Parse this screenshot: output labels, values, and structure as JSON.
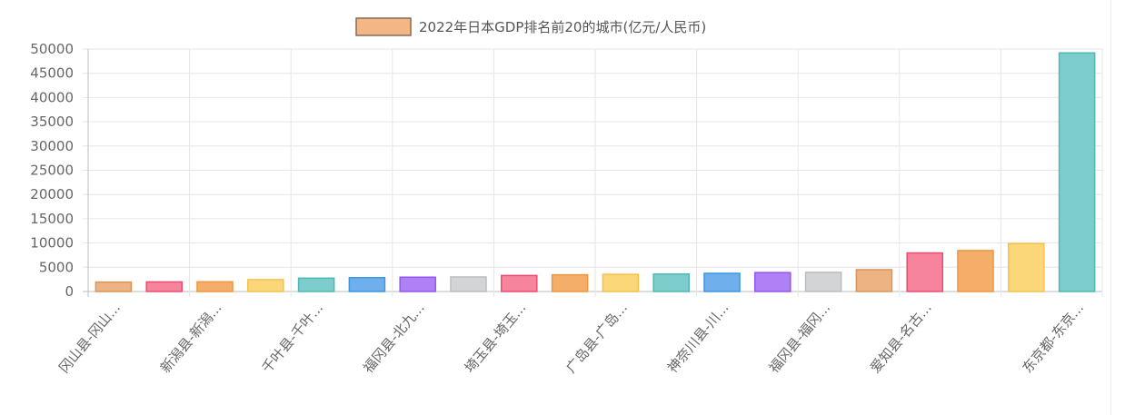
{
  "chart_data": {
    "type": "bar",
    "title": "",
    "legend": {
      "label": "2022年日本GDP排名前20的城市(亿元/人民币)",
      "position": "top",
      "swatch_fill": "#F2B784",
      "swatch_stroke": "#8A6A55"
    },
    "xlabel": "",
    "ylabel": "",
    "ylim": [
      0,
      50000
    ],
    "y_ticks": [
      0,
      5000,
      10000,
      15000,
      20000,
      25000,
      30000,
      35000,
      40000,
      45000,
      50000
    ],
    "grid": true,
    "categories": [
      "冈山县-冈山...",
      "",
      "新潟县-新潟...",
      "",
      "千叶县-千叶...",
      "",
      "福冈县-北九...",
      "",
      "埼玉县-埼玉...",
      "",
      "广岛县-广岛...",
      "",
      "神奈川县-川...",
      "",
      "福冈县-福冈...",
      "",
      "爱知县-名古...",
      "",
      "",
      "东京都-东京..."
    ],
    "values": [
      1950,
      1980,
      2000,
      2450,
      2750,
      2850,
      2950,
      3000,
      3300,
      3450,
      3550,
      3600,
      3750,
      3900,
      3950,
      4500,
      7950,
      8450,
      9900,
      49200
    ],
    "bar_colors": [
      "#EDB382",
      "#F6849D",
      "#F4AE6A",
      "#FBD779",
      "#7CCDCC",
      "#6FAFEB",
      "#AE81F5",
      "#D3D4D6",
      "#F6849D",
      "#F4AE6A",
      "#FBD779",
      "#7CCDCC",
      "#6FAFEB",
      "#AE81F5",
      "#D3D4D6",
      "#EDB382",
      "#F6849D",
      "#F4AE6A",
      "#FBD779",
      "#7CCDCC"
    ],
    "bar_border_colors": [
      "#D9955A",
      "#EB4D72",
      "#F0963D",
      "#F4C24C",
      "#4FB8B5",
      "#3E95E2",
      "#9556F0",
      "#BCBDC0",
      "#EB4D72",
      "#F0963D",
      "#F4C24C",
      "#4FB8B5",
      "#3E95E2",
      "#9556F0",
      "#BCBDC0",
      "#D9955A",
      "#EB4D72",
      "#F0963D",
      "#F4C24C",
      "#4FB8B5"
    ]
  }
}
